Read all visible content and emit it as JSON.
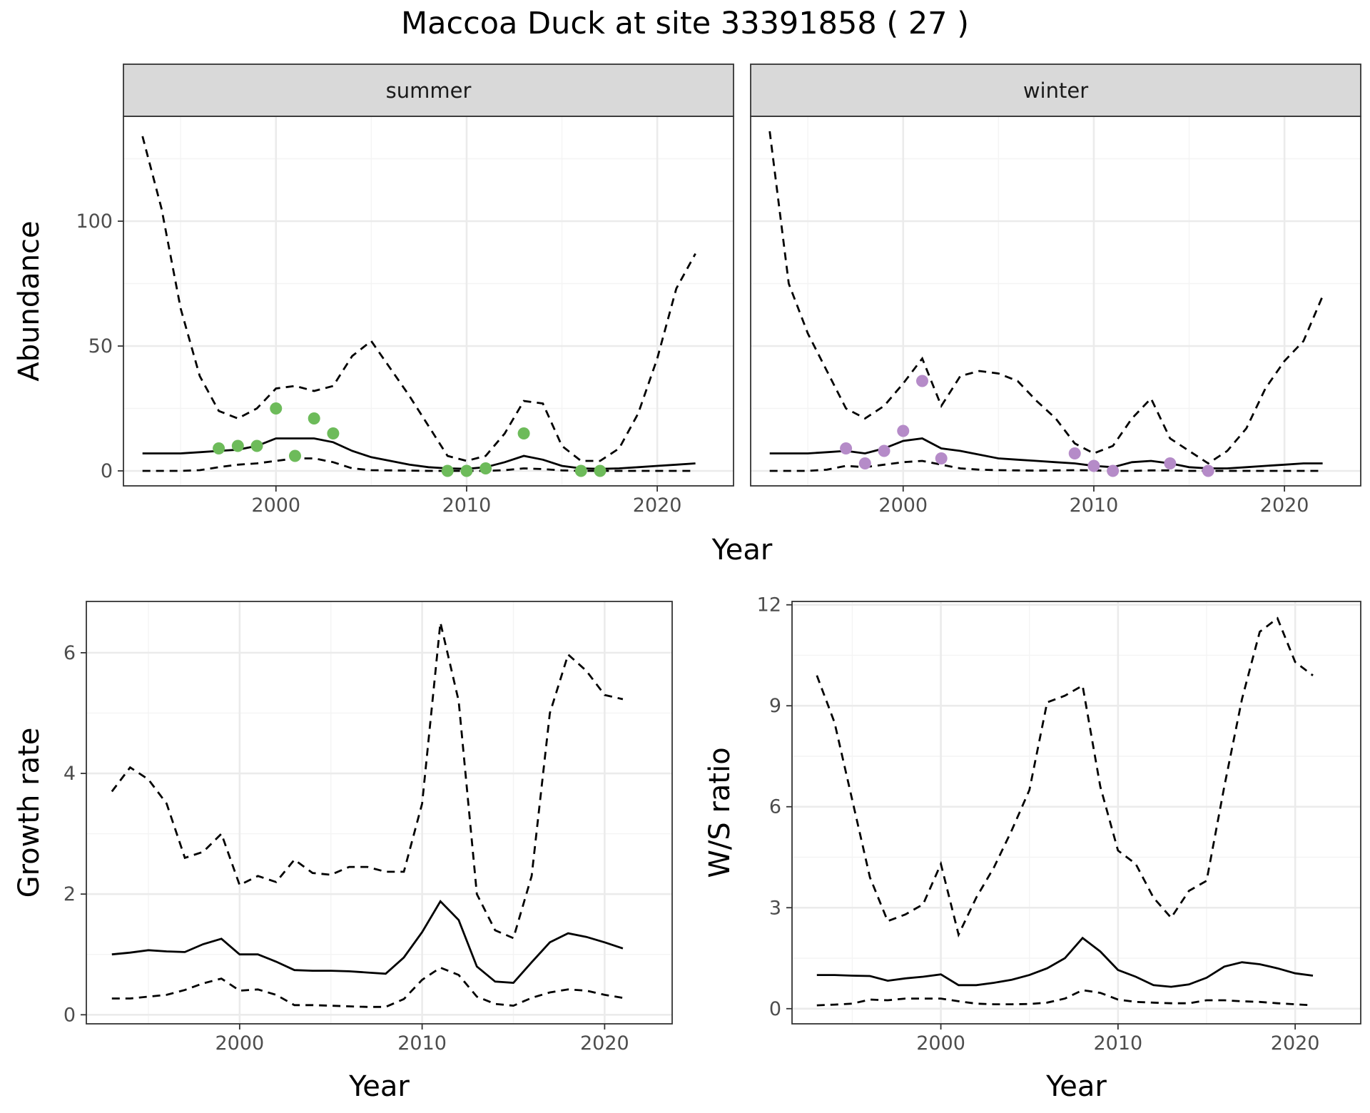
{
  "title": "Maccoa Duck at site 33391858 ( 27 )",
  "colors": {
    "summer_points": "#6dbb5a",
    "winter_points": "#b58bc8",
    "line": "#000000",
    "strip_fill": "#d9d9d9",
    "grid_major": "#ebebeb",
    "grid_minor": "#f4f4f4"
  },
  "chart_data": [
    {
      "id": "abundance",
      "type": "line",
      "facet_by": "season",
      "ylabel": "Abundance",
      "xlabel": "Year",
      "xlim": [
        1992,
        2024
      ],
      "ylim": [
        -6,
        142
      ],
      "xticks": [
        2000,
        2010,
        2020
      ],
      "yticks": [
        0,
        50,
        100
      ],
      "grid": true,
      "panels": [
        {
          "strip": "summer",
          "x": [
            1993,
            1994,
            1995,
            1996,
            1997,
            1998,
            1999,
            2000,
            2001,
            2002,
            2003,
            2004,
            2005,
            2006,
            2007,
            2008,
            2009,
            2010,
            2011,
            2012,
            2013,
            2014,
            2015,
            2016,
            2017,
            2018,
            2019,
            2020,
            2021,
            2022
          ],
          "mean": [
            7,
            7,
            7,
            7.5,
            8,
            8.5,
            10,
            13,
            13,
            13,
            11.5,
            8,
            5.5,
            4,
            2.5,
            1.5,
            1,
            0.8,
            1.5,
            3.5,
            6,
            4.5,
            2,
            1,
            0.8,
            1,
            1.5,
            2,
            2.5,
            3
          ],
          "upper": [
            134,
            105,
            65,
            38,
            24,
            21,
            25,
            33,
            34,
            32,
            34,
            46,
            52,
            41,
            30,
            18,
            6,
            4,
            6,
            15,
            28,
            27,
            10,
            4,
            4,
            9,
            23,
            45,
            73,
            87
          ],
          "lower": [
            0,
            0,
            0,
            0.3,
            1.5,
            2.5,
            3,
            4,
            5,
            5,
            3.5,
            1,
            0.3,
            0.2,
            0.1,
            0,
            0,
            0,
            0,
            0.3,
            1,
            0.7,
            0.2,
            0,
            0,
            0,
            0,
            0,
            0,
            0
          ],
          "points": {
            "x": [
              1997,
              1998,
              1999,
              2000,
              2001,
              2002,
              2003,
              2009,
              2010,
              2011,
              2013,
              2016,
              2017
            ],
            "y": [
              9,
              10,
              10,
              25,
              6,
              21,
              15,
              0,
              0,
              1,
              15,
              0,
              0
            ]
          }
        },
        {
          "strip": "winter",
          "x": [
            1993,
            1994,
            1995,
            1996,
            1997,
            1998,
            1999,
            2000,
            2001,
            2002,
            2003,
            2004,
            2005,
            2006,
            2007,
            2008,
            2009,
            2010,
            2011,
            2012,
            2013,
            2014,
            2015,
            2016,
            2017,
            2018,
            2019,
            2020,
            2021,
            2022
          ],
          "mean": [
            7,
            7,
            7,
            7.5,
            8,
            7,
            9,
            12,
            13,
            9,
            8,
            6.5,
            5,
            4.5,
            4,
            3.5,
            3,
            2,
            1.5,
            3.5,
            4,
            3,
            1.5,
            1,
            1,
            1.5,
            2,
            2.5,
            3,
            3
          ],
          "upper": [
            136,
            75,
            55,
            40,
            25,
            21,
            26,
            35,
            45,
            26,
            38,
            40,
            39,
            36,
            28,
            21,
            11,
            7,
            10,
            21,
            29,
            13,
            8,
            3,
            8,
            17,
            33,
            44,
            52,
            70
          ],
          "lower": [
            0,
            0,
            0,
            0.5,
            2,
            1.5,
            2.5,
            3.5,
            4,
            2.5,
            1,
            0.5,
            0.3,
            0.2,
            0.1,
            0.2,
            0.3,
            0.2,
            0,
            0,
            0.2,
            0.2,
            0,
            0,
            0,
            0,
            0,
            0,
            0,
            0
          ],
          "points": {
            "x": [
              1997,
              1998,
              1999,
              2000,
              2001,
              2002,
              2009,
              2010,
              2011,
              2014,
              2016
            ],
            "y": [
              9,
              3,
              8,
              16,
              36,
              5,
              7,
              2,
              0,
              3,
              0
            ]
          }
        }
      ]
    },
    {
      "id": "growth",
      "type": "line",
      "ylabel": "Growth rate",
      "xlabel": "Year",
      "xlim": [
        1991.6,
        2023.7
      ],
      "ylim": [
        -0.15,
        6.85
      ],
      "xticks": [
        2000,
        2010,
        2020
      ],
      "yticks": [
        0,
        2,
        4,
        6
      ],
      "grid": true,
      "x": [
        1993,
        1994,
        1995,
        1996,
        1997,
        1998,
        1999,
        2000,
        2001,
        2002,
        2003,
        2004,
        2005,
        2006,
        2007,
        2008,
        2009,
        2010,
        2011,
        2012,
        2013,
        2014,
        2015,
        2016,
        2017,
        2018,
        2019,
        2020,
        2021
      ],
      "mean": [
        1.0,
        1.03,
        1.07,
        1.05,
        1.04,
        1.17,
        1.26,
        1.0,
        1.0,
        0.88,
        0.74,
        0.73,
        0.73,
        0.72,
        0.7,
        0.68,
        0.95,
        1.37,
        1.88,
        1.57,
        0.8,
        0.55,
        0.53,
        0.87,
        1.2,
        1.35,
        1.29,
        1.2,
        1.1
      ],
      "upper": [
        3.7,
        4.1,
        3.9,
        3.5,
        2.6,
        2.7,
        3.0,
        2.15,
        2.3,
        2.2,
        2.57,
        2.35,
        2.32,
        2.45,
        2.45,
        2.37,
        2.37,
        3.5,
        6.5,
        5.2,
        2.0,
        1.4,
        1.27,
        2.3,
        5.0,
        5.97,
        5.7,
        5.3,
        5.23
      ],
      "lower": [
        0.27,
        0.27,
        0.3,
        0.33,
        0.41,
        0.52,
        0.6,
        0.4,
        0.42,
        0.33,
        0.16,
        0.16,
        0.15,
        0.14,
        0.13,
        0.13,
        0.26,
        0.58,
        0.78,
        0.66,
        0.3,
        0.18,
        0.15,
        0.28,
        0.37,
        0.42,
        0.4,
        0.33,
        0.28
      ]
    },
    {
      "id": "ws_ratio",
      "type": "line",
      "ylabel": "W/S ratio",
      "xlabel": "Year",
      "xlim": [
        1991.6,
        2023.7
      ],
      "ylim": [
        -0.45,
        12.1
      ],
      "xticks": [
        2000,
        2010,
        2020
      ],
      "yticks": [
        0,
        3,
        6,
        9,
        12
      ],
      "grid": true,
      "x": [
        1993,
        1994,
        1995,
        1996,
        1997,
        1998,
        1999,
        2000,
        2001,
        2002,
        2003,
        2004,
        2005,
        2006,
        2007,
        2008,
        2009,
        2010,
        2011,
        2012,
        2013,
        2014,
        2015,
        2016,
        2017,
        2018,
        2019,
        2020,
        2021
      ],
      "mean": [
        1.0,
        1.0,
        0.98,
        0.97,
        0.83,
        0.9,
        0.95,
        1.02,
        0.7,
        0.7,
        0.77,
        0.86,
        1.0,
        1.2,
        1.5,
        2.1,
        1.7,
        1.15,
        0.95,
        0.7,
        0.65,
        0.72,
        0.92,
        1.25,
        1.38,
        1.32,
        1.2,
        1.05,
        0.98
      ],
      "upper": [
        9.9,
        8.5,
        6.2,
        3.9,
        2.6,
        2.8,
        3.1,
        4.3,
        2.2,
        3.3,
        4.2,
        5.3,
        6.5,
        9.1,
        9.3,
        9.6,
        6.6,
        4.7,
        4.3,
        3.3,
        2.7,
        3.5,
        3.8,
        6.6,
        9.2,
        11.2,
        11.6,
        10.3,
        9.9
      ],
      "lower": [
        0.1,
        0.12,
        0.15,
        0.27,
        0.25,
        0.3,
        0.3,
        0.3,
        0.22,
        0.15,
        0.13,
        0.13,
        0.14,
        0.18,
        0.3,
        0.55,
        0.47,
        0.27,
        0.2,
        0.18,
        0.16,
        0.16,
        0.25,
        0.25,
        0.22,
        0.2,
        0.16,
        0.13,
        0.1
      ]
    }
  ]
}
